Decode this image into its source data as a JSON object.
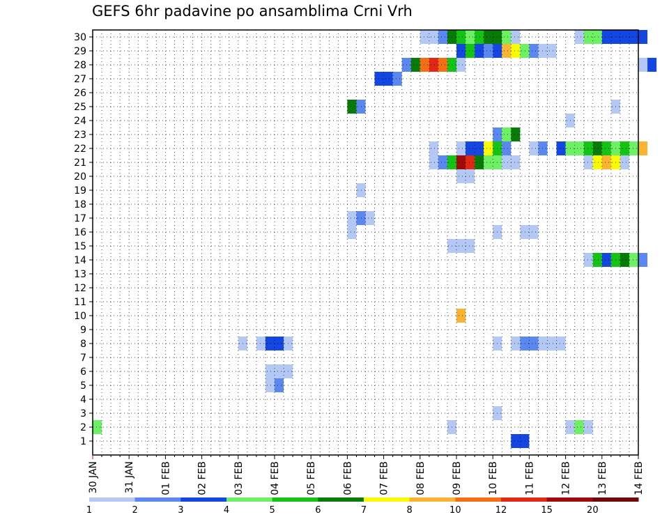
{
  "chart_data": {
    "type": "heatmap",
    "title": "GEFS 6hr padavine po ansamblima Crni Vrh",
    "xlabel": "",
    "ylabel": "",
    "x_ticks": [
      "30 JAN",
      "31 JAN",
      "01 FEB",
      "02 FEB",
      "03 FEB",
      "04 FEB",
      "05 FEB",
      "06 FEB",
      "07 FEB",
      "08 FEB",
      "09 FEB",
      "10 FEB",
      "11 FEB",
      "12 FEB",
      "13 FEB",
      "14 FEB"
    ],
    "y_ticks": [
      1,
      2,
      3,
      4,
      5,
      6,
      7,
      8,
      9,
      10,
      11,
      12,
      13,
      14,
      15,
      16,
      17,
      18,
      19,
      20,
      21,
      22,
      23,
      24,
      25,
      26,
      27,
      28,
      29,
      30
    ],
    "grid": true,
    "grid_style": "dotted",
    "steps_per_day": 4,
    "colorbar": {
      "labels": [
        "1",
        "2",
        "3",
        "4",
        "5",
        "6",
        "7",
        "8",
        "10",
        "12",
        "15",
        "20"
      ],
      "colors": [
        "#b4c8f5",
        "#5a87f0",
        "#1446e1",
        "#6ef064",
        "#14c314",
        "#087a08",
        "#fafa00",
        "#fab432",
        "#f56e14",
        "#e12814",
        "#a00a0a",
        "#6e0a0a"
      ]
    },
    "cells": [
      [
        1,
        11.5,
        12,
        3
      ],
      [
        2,
        0,
        0.25,
        4
      ],
      [
        2,
        9.75,
        10,
        1
      ],
      [
        2,
        13,
        13.25,
        1
      ],
      [
        2,
        13.25,
        13.5,
        4
      ],
      [
        2,
        13.5,
        13.75,
        1
      ],
      [
        3,
        11,
        11.25,
        1
      ],
      [
        5,
        4.75,
        5,
        1
      ],
      [
        5,
        5,
        5.25,
        2
      ],
      [
        6,
        4.75,
        5.5,
        1
      ],
      [
        8,
        4.0,
        4.25,
        1
      ],
      [
        8,
        4.5,
        4.75,
        1
      ],
      [
        8,
        4.75,
        5.25,
        3
      ],
      [
        8,
        5.25,
        5.5,
        1
      ],
      [
        8,
        11,
        11.25,
        1
      ],
      [
        8,
        11.5,
        11.75,
        1
      ],
      [
        8,
        11.75,
        12.25,
        2
      ],
      [
        8,
        12.25,
        13,
        1
      ],
      [
        10,
        10,
        10.25,
        8
      ],
      [
        14,
        13.5,
        13.75,
        1
      ],
      [
        14,
        13.75,
        14,
        5
      ],
      [
        14,
        14,
        14.25,
        3
      ],
      [
        14,
        14.25,
        14.5,
        5
      ],
      [
        14,
        14.5,
        14.75,
        6
      ],
      [
        14,
        14.75,
        15,
        4
      ],
      [
        14,
        15,
        15.25,
        2
      ],
      [
        15,
        9.75,
        10.5,
        1
      ],
      [
        16,
        7,
        7.25,
        1
      ],
      [
        16,
        11,
        11.25,
        1
      ],
      [
        16,
        11.75,
        12.25,
        1
      ],
      [
        17,
        7,
        7.25,
        1
      ],
      [
        17,
        7.25,
        7.5,
        2
      ],
      [
        17,
        7.5,
        7.75,
        1
      ],
      [
        19,
        7.25,
        7.5,
        1
      ],
      [
        20,
        10,
        10.5,
        1
      ],
      [
        21,
        9.25,
        9.5,
        1
      ],
      [
        21,
        9.5,
        9.75,
        2
      ],
      [
        21,
        9.75,
        10,
        5
      ],
      [
        21,
        10,
        10.25,
        11
      ],
      [
        21,
        10.25,
        10.5,
        10
      ],
      [
        21,
        10.5,
        10.75,
        6
      ],
      [
        21,
        10.75,
        11.25,
        4
      ],
      [
        21,
        11.25,
        11.75,
        1
      ],
      [
        21,
        13.5,
        13.75,
        1
      ],
      [
        21,
        13.75,
        14,
        7
      ],
      [
        21,
        14,
        14.25,
        8
      ],
      [
        21,
        14.25,
        14.5,
        7
      ],
      [
        21,
        14.5,
        14.75,
        1
      ],
      [
        22,
        9.25,
        9.5,
        1
      ],
      [
        22,
        10,
        10.25,
        1
      ],
      [
        22,
        10.25,
        10.75,
        3
      ],
      [
        22,
        10.75,
        11,
        7
      ],
      [
        22,
        11,
        11.25,
        5
      ],
      [
        22,
        11.25,
        11.5,
        2
      ],
      [
        22,
        12,
        12.25,
        1
      ],
      [
        22,
        12.25,
        12.5,
        2
      ],
      [
        22,
        12.75,
        13,
        3
      ],
      [
        22,
        13,
        13.5,
        4
      ],
      [
        22,
        13.5,
        13.75,
        5
      ],
      [
        22,
        13.75,
        14,
        6
      ],
      [
        22,
        14,
        14.25,
        5
      ],
      [
        22,
        14.25,
        14.5,
        4
      ],
      [
        22,
        14.5,
        14.75,
        5
      ],
      [
        22,
        14.75,
        15,
        4
      ],
      [
        22,
        15,
        15.25,
        8
      ],
      [
        23,
        11,
        11.25,
        2
      ],
      [
        23,
        11.25,
        11.5,
        4
      ],
      [
        23,
        11.5,
        11.75,
        6
      ],
      [
        24,
        13,
        13.25,
        1
      ],
      [
        25,
        7,
        7.25,
        6
      ],
      [
        25,
        7.25,
        7.5,
        2
      ],
      [
        25,
        14.25,
        14.5,
        1
      ],
      [
        27,
        7.75,
        8.25,
        3
      ],
      [
        27,
        8.25,
        8.5,
        2
      ],
      [
        28,
        8.5,
        8.75,
        2
      ],
      [
        28,
        8.75,
        9,
        6
      ],
      [
        28,
        9,
        9.25,
        9
      ],
      [
        28,
        9.25,
        9.5,
        10
      ],
      [
        28,
        9.5,
        9.75,
        9
      ],
      [
        28,
        9.75,
        10,
        5
      ],
      [
        28,
        10,
        10.25,
        1
      ],
      [
        28,
        15,
        15.25,
        1
      ],
      [
        28,
        15.25,
        15.5,
        3
      ],
      [
        29,
        10,
        10.25,
        3
      ],
      [
        29,
        10.25,
        10.5,
        5
      ],
      [
        29,
        10.5,
        10.75,
        3
      ],
      [
        29,
        10.75,
        11,
        2
      ],
      [
        29,
        11,
        11.25,
        3
      ],
      [
        29,
        11.25,
        11.5,
        8
      ],
      [
        29,
        11.5,
        11.75,
        7
      ],
      [
        29,
        11.75,
        12,
        4
      ],
      [
        29,
        12,
        12.25,
        2
      ],
      [
        29,
        12.25,
        12.75,
        1
      ],
      [
        30,
        9,
        9.5,
        1
      ],
      [
        30,
        9.5,
        9.75,
        2
      ],
      [
        30,
        9.75,
        10,
        6
      ],
      [
        30,
        10,
        10.25,
        5
      ],
      [
        30,
        10.25,
        10.5,
        4
      ],
      [
        30,
        10.5,
        10.75,
        5
      ],
      [
        30,
        10.75,
        11.25,
        6
      ],
      [
        30,
        11.25,
        11.5,
        4
      ],
      [
        30,
        11.5,
        11.75,
        1
      ],
      [
        30,
        13.25,
        13.5,
        1
      ],
      [
        30,
        13.5,
        14,
        4
      ],
      [
        30,
        14,
        15.25,
        3
      ]
    ],
    "cell_columns": [
      "member",
      "start_day",
      "end_day",
      "color_index"
    ]
  }
}
